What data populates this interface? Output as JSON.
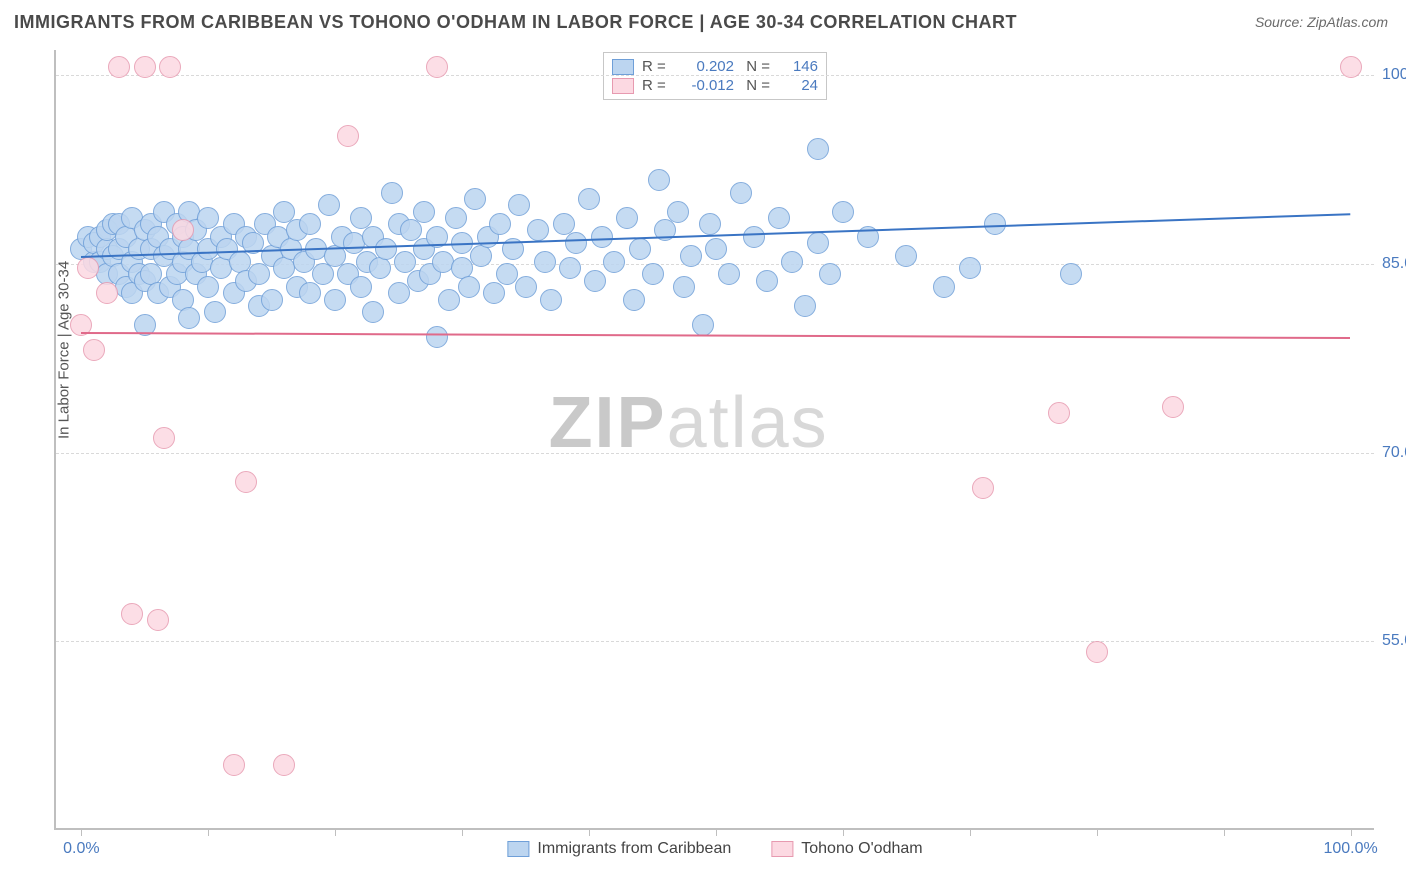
{
  "title": "IMMIGRANTS FROM CARIBBEAN VS TOHONO O'ODHAM IN LABOR FORCE | AGE 30-34 CORRELATION CHART",
  "source": "Source: ZipAtlas.com",
  "ylabel": "In Labor Force | Age 30-34",
  "watermark_a": "ZIP",
  "watermark_b": "atlas",
  "chart": {
    "type": "scatter",
    "background_color": "#ffffff",
    "grid_color": "#d9d9d9",
    "axis_color": "#bfbfbf",
    "yticks": [
      55.0,
      70.0,
      85.0,
      100.0
    ],
    "ytick_labels": [
      "55.0%",
      "70.0%",
      "85.0%",
      "100.0%"
    ],
    "ylim": [
      40,
      102
    ],
    "xticks": [
      0,
      10,
      20,
      30,
      40,
      50,
      60,
      70,
      80,
      90,
      100
    ],
    "xlim": [
      -2,
      102
    ],
    "xaxis_end_labels": {
      "left": "0.0%",
      "right": "100.0%"
    },
    "point_radius": 11,
    "series": [
      {
        "name": "Immigrants from Caribbean",
        "marker_fill": "#bcd5f0",
        "marker_stroke": "#6f9fd8",
        "line_color": "#3a74c4",
        "R": "0.202",
        "N": "146",
        "regression": {
          "x1": 0,
          "y1": 85.6,
          "x2": 100,
          "y2": 89.0
        },
        "points": [
          [
            0,
            86
          ],
          [
            0.5,
            87
          ],
          [
            1,
            85
          ],
          [
            1,
            86.5
          ],
          [
            1.5,
            87
          ],
          [
            1.5,
            85
          ],
          [
            2,
            84
          ],
          [
            2,
            86
          ],
          [
            2,
            87.5
          ],
          [
            2.5,
            85.5
          ],
          [
            2.5,
            88
          ],
          [
            3,
            84
          ],
          [
            3,
            86
          ],
          [
            3,
            88
          ],
          [
            3.5,
            83
          ],
          [
            3.5,
            87
          ],
          [
            4,
            85
          ],
          [
            4,
            88.5
          ],
          [
            4,
            82.5
          ],
          [
            4.5,
            86
          ],
          [
            4.5,
            84
          ],
          [
            5,
            87.5
          ],
          [
            5,
            83.5
          ],
          [
            5,
            80
          ],
          [
            5.5,
            86
          ],
          [
            5.5,
            88
          ],
          [
            5.5,
            84
          ],
          [
            6,
            82.5
          ],
          [
            6,
            87
          ],
          [
            6.5,
            85.5
          ],
          [
            6.5,
            89
          ],
          [
            7,
            83
          ],
          [
            7,
            86
          ],
          [
            7.5,
            88
          ],
          [
            7.5,
            84
          ],
          [
            8,
            85
          ],
          [
            8,
            82
          ],
          [
            8,
            87
          ],
          [
            8.5,
            86
          ],
          [
            8.5,
            89
          ],
          [
            8.5,
            80.5
          ],
          [
            9,
            84
          ],
          [
            9,
            87.5
          ],
          [
            9.5,
            85
          ],
          [
            10,
            83
          ],
          [
            10,
            86
          ],
          [
            10,
            88.5
          ],
          [
            10.5,
            81
          ],
          [
            11,
            87
          ],
          [
            11,
            84.5
          ],
          [
            11.5,
            86
          ],
          [
            12,
            82.5
          ],
          [
            12,
            88
          ],
          [
            12.5,
            85
          ],
          [
            13,
            87
          ],
          [
            13,
            83.5
          ],
          [
            13.5,
            86.5
          ],
          [
            14,
            84
          ],
          [
            14,
            81.5
          ],
          [
            14.5,
            88
          ],
          [
            15,
            85.5
          ],
          [
            15,
            82
          ],
          [
            15.5,
            87
          ],
          [
            16,
            84.5
          ],
          [
            16,
            89
          ],
          [
            16.5,
            86
          ],
          [
            17,
            83
          ],
          [
            17,
            87.5
          ],
          [
            17.5,
            85
          ],
          [
            18,
            82.5
          ],
          [
            18,
            88
          ],
          [
            18.5,
            86
          ],
          [
            19,
            84
          ],
          [
            19.5,
            89.5
          ],
          [
            20,
            85.5
          ],
          [
            20,
            82
          ],
          [
            20.5,
            87
          ],
          [
            21,
            84
          ],
          [
            21.5,
            86.5
          ],
          [
            22,
            83
          ],
          [
            22,
            88.5
          ],
          [
            22.5,
            85
          ],
          [
            23,
            81
          ],
          [
            23,
            87
          ],
          [
            23.5,
            84.5
          ],
          [
            24,
            86
          ],
          [
            24.5,
            90.5
          ],
          [
            25,
            82.5
          ],
          [
            25,
            88
          ],
          [
            25.5,
            85
          ],
          [
            26,
            87.5
          ],
          [
            26.5,
            83.5
          ],
          [
            27,
            86
          ],
          [
            27,
            89
          ],
          [
            27.5,
            84
          ],
          [
            28,
            79
          ],
          [
            28,
            87
          ],
          [
            28.5,
            85
          ],
          [
            29,
            82
          ],
          [
            29.5,
            88.5
          ],
          [
            30,
            84.5
          ],
          [
            30,
            86.5
          ],
          [
            30.5,
            83
          ],
          [
            31,
            90
          ],
          [
            31.5,
            85.5
          ],
          [
            32,
            87
          ],
          [
            32.5,
            82.5
          ],
          [
            33,
            88
          ],
          [
            33.5,
            84
          ],
          [
            34,
            86
          ],
          [
            34.5,
            89.5
          ],
          [
            35,
            83
          ],
          [
            36,
            87.5
          ],
          [
            36.5,
            85
          ],
          [
            37,
            82
          ],
          [
            38,
            88
          ],
          [
            38.5,
            84.5
          ],
          [
            39,
            86.5
          ],
          [
            40,
            90
          ],
          [
            40.5,
            83.5
          ],
          [
            41,
            87
          ],
          [
            42,
            85
          ],
          [
            43,
            88.5
          ],
          [
            43.5,
            82
          ],
          [
            44,
            86
          ],
          [
            45,
            84
          ],
          [
            45.5,
            91.5
          ],
          [
            46,
            87.5
          ],
          [
            47,
            89
          ],
          [
            47.5,
            83
          ],
          [
            48,
            85.5
          ],
          [
            49,
            80
          ],
          [
            49.5,
            88
          ],
          [
            50,
            86
          ],
          [
            51,
            84
          ],
          [
            52,
            90.5
          ],
          [
            53,
            87
          ],
          [
            54,
            83.5
          ],
          [
            55,
            88.5
          ],
          [
            56,
            85
          ],
          [
            57,
            81.5
          ],
          [
            58,
            94
          ],
          [
            58,
            86.5
          ],
          [
            59,
            84
          ],
          [
            60,
            89
          ],
          [
            62,
            87
          ],
          [
            65,
            85.5
          ],
          [
            68,
            83
          ],
          [
            70,
            84.5
          ],
          [
            72,
            88
          ],
          [
            78,
            84
          ]
        ]
      },
      {
        "name": "Tohono O'odham",
        "marker_fill": "#fcd9e2",
        "marker_stroke": "#e79ab0",
        "line_color": "#e06a8a",
        "R": "-0.012",
        "N": "24",
        "regression": {
          "x1": 0,
          "y1": 79.6,
          "x2": 100,
          "y2": 79.2
        },
        "points": [
          [
            0,
            80
          ],
          [
            0.5,
            84.5
          ],
          [
            1,
            78
          ],
          [
            2,
            82.5
          ],
          [
            3,
            100.5
          ],
          [
            4,
            57
          ],
          [
            5,
            100.5
          ],
          [
            6,
            56.5
          ],
          [
            6.5,
            71
          ],
          [
            7,
            100.5
          ],
          [
            8,
            87.5
          ],
          [
            12,
            45
          ],
          [
            13,
            67.5
          ],
          [
            16,
            45
          ],
          [
            21,
            95
          ],
          [
            28,
            100.5
          ],
          [
            71,
            67
          ],
          [
            77,
            73
          ],
          [
            80,
            54
          ],
          [
            86,
            73.5
          ],
          [
            100,
            100.5
          ]
        ]
      }
    ]
  },
  "legend": {
    "items": [
      {
        "label": "Immigrants from Caribbean",
        "fill": "#bcd5f0",
        "stroke": "#6f9fd8"
      },
      {
        "label": "Tohono O'odham",
        "fill": "#fcd9e2",
        "stroke": "#e79ab0"
      }
    ]
  }
}
